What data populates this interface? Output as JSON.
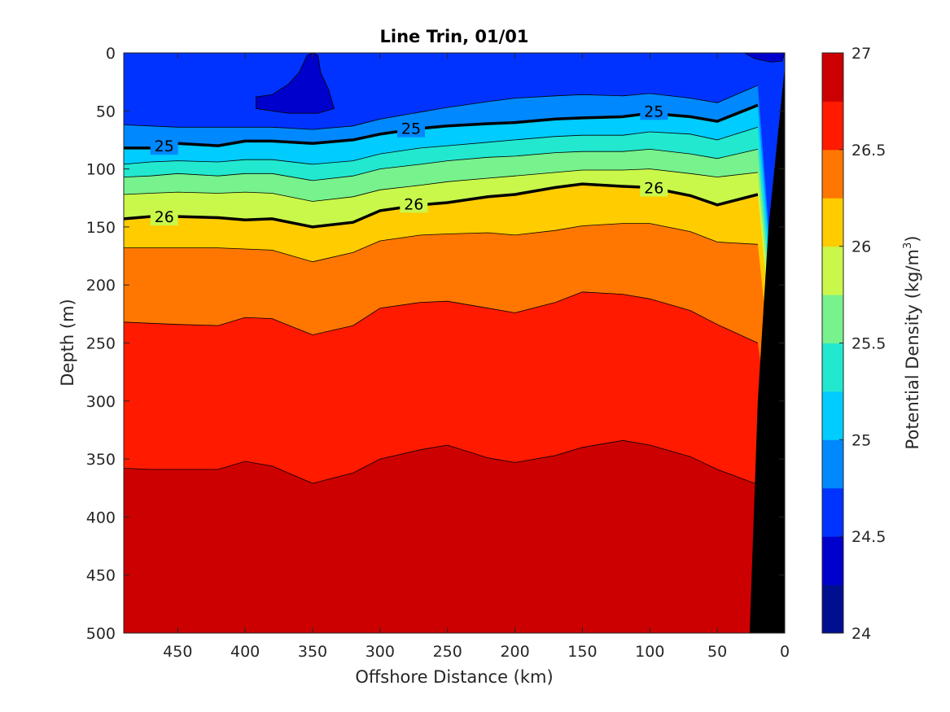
{
  "chart_data": {
    "type": "contour",
    "title": "Line Trin, 01/01",
    "xlabel": "Offshore Distance (km)",
    "ylabel": "Depth (m)",
    "xlim": [
      490,
      0
    ],
    "ylim": [
      0,
      500
    ],
    "x_reversed": true,
    "y_reversed": true,
    "x_ticks": [
      450,
      400,
      350,
      300,
      250,
      200,
      150,
      100,
      50,
      0
    ],
    "y_ticks": [
      0,
      50,
      100,
      150,
      200,
      250,
      300,
      350,
      400,
      450,
      500
    ],
    "colorbar": {
      "label": "Potential Density (kg/m",
      "label_superscript": "3",
      "label_suffix": ")",
      "range": [
        24,
        27
      ],
      "ticks": [
        24,
        24.5,
        25,
        25.5,
        26,
        26.5,
        27
      ],
      "tick_labels": [
        "24",
        "24.5",
        "25",
        "25.5",
        "26",
        "26.5",
        "27"
      ],
      "levels": [
        24,
        24.25,
        24.5,
        24.75,
        25,
        25.25,
        25.5,
        25.75,
        26,
        26.25,
        26.5,
        26.75,
        27
      ],
      "colors": [
        "#000f8f",
        "#0000cc",
        "#0033ff",
        "#0088ff",
        "#00ccff",
        "#22e8d0",
        "#77f28c",
        "#c9f84a",
        "#ffcc00",
        "#ff7700",
        "#ff1a00",
        "#cc0000"
      ]
    },
    "contour_x": [
      490,
      470,
      450,
      420,
      400,
      380,
      350,
      320,
      300,
      270,
      250,
      220,
      200,
      170,
      150,
      120,
      100,
      70,
      50,
      20
    ],
    "contours": [
      {
        "level": 24.75,
        "depth": [
          62,
          63,
          64,
          64,
          64,
          64,
          66,
          63,
          57,
          51,
          47,
          42,
          39,
          37,
          36,
          37,
          35,
          39,
          43,
          28
        ]
      },
      {
        "level": 25,
        "depth": [
          82,
          82,
          78,
          80,
          76,
          76,
          78,
          75,
          70,
          65,
          63,
          61,
          60,
          57,
          56,
          55,
          52,
          55,
          59,
          45
        ]
      },
      {
        "level": 25.25,
        "depth": [
          96,
          94,
          93,
          94,
          92,
          92,
          96,
          93,
          87,
          82,
          80,
          77,
          75,
          72,
          71,
          71,
          68,
          70,
          75,
          64
        ]
      },
      {
        "level": 25.5,
        "depth": [
          107,
          106,
          104,
          106,
          104,
          104,
          110,
          106,
          100,
          96,
          93,
          90,
          89,
          86,
          85,
          85,
          83,
          87,
          91,
          83
        ]
      },
      {
        "level": 25.75,
        "depth": [
          122,
          121,
          120,
          121,
          120,
          121,
          128,
          124,
          118,
          114,
          111,
          108,
          106,
          103,
          101,
          101,
          100,
          104,
          107,
          103
        ]
      },
      {
        "level": 26,
        "depth": [
          143,
          141,
          141,
          142,
          144,
          143,
          150,
          146,
          136,
          131,
          129,
          124,
          122,
          116,
          113,
          115,
          116,
          123,
          131,
          122
        ]
      },
      {
        "level": 26.25,
        "depth": [
          168,
          168,
          168,
          168,
          169,
          170,
          180,
          172,
          162,
          157,
          156,
          155,
          157,
          153,
          149,
          147,
          147,
          154,
          163,
          165
        ]
      },
      {
        "level": 26.5,
        "depth": [
          232,
          233,
          234,
          235,
          228,
          229,
          243,
          235,
          220,
          215,
          214,
          220,
          224,
          215,
          206,
          208,
          212,
          222,
          234,
          250
        ]
      },
      {
        "level": 26.75,
        "depth": [
          358,
          359,
          359,
          359,
          352,
          356,
          371,
          362,
          350,
          342,
          338,
          349,
          353,
          347,
          340,
          334,
          338,
          348,
          359,
          372
        ]
      }
    ],
    "bold_contours": [
      {
        "level": 25,
        "label": "25",
        "label_positions": [
          [
            460,
            80
          ],
          [
            277,
            65
          ],
          [
            97,
            50
          ]
        ]
      },
      {
        "level": 26,
        "label": "26",
        "label_positions": [
          [
            460,
            141
          ],
          [
            275,
            130
          ],
          [
            97,
            116
          ]
        ]
      }
    ],
    "pockets": [
      {
        "level_below": 24.5,
        "points": [
          [
            392,
            38
          ],
          [
            380,
            36
          ],
          [
            368,
            27
          ],
          [
            360,
            17
          ],
          [
            354,
            2
          ],
          [
            350,
            0
          ],
          [
            346,
            2
          ],
          [
            344,
            17
          ],
          [
            338,
            32
          ],
          [
            334,
            48
          ],
          [
            346,
            52
          ],
          [
            368,
            52
          ],
          [
            392,
            48
          ]
        ]
      },
      {
        "level_below": 24.5,
        "points": [
          [
            30,
            0
          ],
          [
            22,
            5
          ],
          [
            10,
            8
          ],
          [
            2,
            7
          ],
          [
            0,
            0
          ]
        ]
      }
    ],
    "seafloor": {
      "color": "#000000",
      "points": [
        [
          0,
          12
        ],
        [
          0,
          500
        ],
        [
          26,
          500
        ],
        [
          20,
          300
        ],
        [
          12,
          150
        ]
      ]
    }
  }
}
